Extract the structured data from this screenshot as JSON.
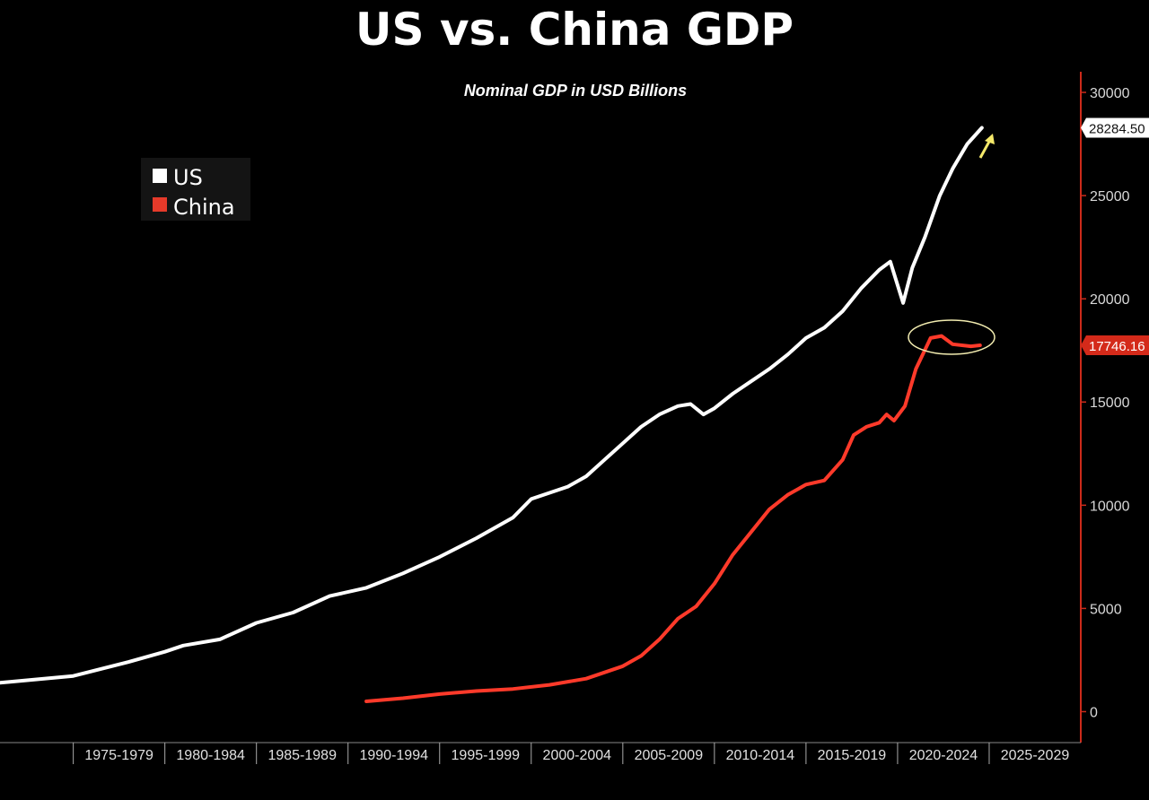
{
  "chart_data": {
    "type": "line",
    "title": "US vs. China GDP",
    "subtitle": "Nominal GDP in USD Billions",
    "x_categories": [
      "1975-1979",
      "1980-1984",
      "1985-1989",
      "1990-1994",
      "1995-1999",
      "2000-2004",
      "2005-2009",
      "2010-2014",
      "2015-2019",
      "2020-2024",
      "2025-2029"
    ],
    "xlim": [
      1971,
      2030
    ],
    "ylim": [
      -1500,
      31000
    ],
    "y_ticks": [
      0,
      5000,
      10000,
      15000,
      20000,
      25000,
      30000
    ],
    "y_tick_labels": [
      "0",
      "5000",
      "10000",
      "15000",
      "20000",
      "25000",
      "30000"
    ],
    "legend": {
      "placement": "top-left",
      "labels": [
        "US",
        "China"
      ]
    },
    "grid": false,
    "series": [
      {
        "name": "US",
        "color": "#ffffff",
        "last_value_label": "28284.50",
        "points": [
          [
            1971,
            1400
          ],
          [
            1975,
            1730
          ],
          [
            1978,
            2400
          ],
          [
            1980,
            2900
          ],
          [
            1981,
            3200
          ],
          [
            1983,
            3500
          ],
          [
            1985,
            4300
          ],
          [
            1987,
            4800
          ],
          [
            1989,
            5600
          ],
          [
            1991,
            6000
          ],
          [
            1993,
            6700
          ],
          [
            1995,
            7500
          ],
          [
            1997,
            8400
          ],
          [
            1999,
            9400
          ],
          [
            2000,
            10300
          ],
          [
            2001,
            10600
          ],
          [
            2002,
            10900
          ],
          [
            2003,
            11400
          ],
          [
            2004,
            12200
          ],
          [
            2005,
            13000
          ],
          [
            2006,
            13800
          ],
          [
            2007,
            14400
          ],
          [
            2008,
            14800
          ],
          [
            2008.7,
            14900
          ],
          [
            2009.4,
            14400
          ],
          [
            2010,
            14700
          ],
          [
            2011,
            15400
          ],
          [
            2012,
            16000
          ],
          [
            2013,
            16600
          ],
          [
            2014,
            17300
          ],
          [
            2015,
            18100
          ],
          [
            2016,
            18600
          ],
          [
            2017,
            19400
          ],
          [
            2018,
            20500
          ],
          [
            2019,
            21400
          ],
          [
            2019.6,
            21800
          ],
          [
            2020.3,
            19800
          ],
          [
            2020.8,
            21500
          ],
          [
            2021.5,
            23000
          ],
          [
            2022.3,
            25000
          ],
          [
            2023,
            26300
          ],
          [
            2023.8,
            27500
          ],
          [
            2024.6,
            28284.5
          ]
        ]
      },
      {
        "name": "China",
        "color": "#ff3a2a",
        "last_value_label": "17746.16",
        "points": [
          [
            1991,
            500
          ],
          [
            1993,
            650
          ],
          [
            1995,
            850
          ],
          [
            1997,
            1000
          ],
          [
            1999,
            1100
          ],
          [
            2001,
            1300
          ],
          [
            2003,
            1600
          ],
          [
            2005,
            2200
          ],
          [
            2006,
            2700
          ],
          [
            2007,
            3500
          ],
          [
            2008,
            4500
          ],
          [
            2009,
            5100
          ],
          [
            2010,
            6200
          ],
          [
            2011,
            7600
          ],
          [
            2012,
            8700
          ],
          [
            2013,
            9800
          ],
          [
            2014,
            10500
          ],
          [
            2015,
            11000
          ],
          [
            2016,
            11200
          ],
          [
            2017,
            12200
          ],
          [
            2017.6,
            13400
          ],
          [
            2018.3,
            13800
          ],
          [
            2019,
            14000
          ],
          [
            2019.4,
            14400
          ],
          [
            2019.8,
            14100
          ],
          [
            2020.4,
            14800
          ],
          [
            2021,
            16600
          ],
          [
            2021.8,
            18100
          ],
          [
            2022.4,
            18200
          ],
          [
            2023,
            17800
          ],
          [
            2024,
            17700
          ],
          [
            2024.5,
            17746.16
          ]
        ]
      }
    ]
  }
}
